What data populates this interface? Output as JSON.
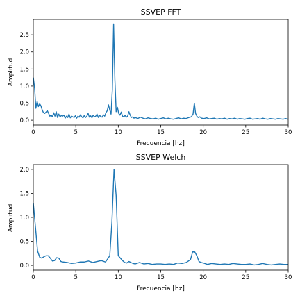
{
  "chart_data": [
    {
      "type": "line",
      "title": "SSVEP FFT",
      "xlabel": "Frecuencia [hz]",
      "ylabel": "Amplitud",
      "xlim": [
        0,
        30
      ],
      "ylim": [
        -0.14,
        2.95
      ],
      "xticks": [
        0,
        5,
        10,
        15,
        20,
        25,
        30
      ],
      "xticklabels": [
        "0",
        "5",
        "10",
        "15",
        "20",
        "25",
        "30"
      ],
      "yticks": [
        0,
        0.5,
        1,
        1.5,
        2,
        2.5
      ],
      "yticklabels": [
        "0.0",
        "0.5",
        "1.0",
        "1.5",
        "2.0",
        "2.5"
      ],
      "series": [
        {
          "name": "FFT",
          "color": "#1f77b4",
          "x": [
            0,
            0.15,
            0.3,
            0.45,
            0.6,
            0.75,
            0.9,
            1.05,
            1.2,
            1.35,
            1.5,
            1.65,
            1.8,
            1.95,
            2.1,
            2.25,
            2.4,
            2.55,
            2.7,
            2.85,
            3.0,
            3.15,
            3.3,
            3.45,
            3.6,
            3.75,
            3.9,
            4.05,
            4.2,
            4.35,
            4.5,
            4.65,
            4.8,
            4.95,
            5.1,
            5.25,
            5.4,
            5.55,
            5.7,
            5.85,
            6.0,
            6.15,
            6.3,
            6.45,
            6.6,
            6.75,
            6.9,
            7.05,
            7.2,
            7.35,
            7.5,
            7.65,
            7.8,
            7.95,
            8.1,
            8.25,
            8.4,
            8.55,
            8.7,
            8.85,
            9.0,
            9.15,
            9.3,
            9.45,
            9.6,
            9.75,
            9.9,
            10.05,
            10.2,
            10.35,
            10.5,
            10.65,
            10.8,
            10.95,
            11.1,
            11.25,
            11.4,
            11.55,
            11.7,
            11.85,
            12.0,
            12.3,
            12.6,
            12.9,
            13.2,
            13.5,
            13.8,
            14.1,
            14.4,
            14.7,
            15.0,
            15.3,
            15.6,
            15.9,
            16.2,
            16.5,
            16.8,
            17.1,
            17.4,
            17.7,
            18.0,
            18.3,
            18.6,
            18.8,
            18.95,
            19.1,
            19.25,
            19.4,
            19.6,
            19.8,
            20.1,
            20.4,
            20.7,
            21.0,
            21.3,
            21.6,
            21.9,
            22.2,
            22.5,
            22.8,
            23.1,
            23.4,
            23.7,
            24.0,
            24.3,
            24.6,
            24.9,
            25.2,
            25.5,
            25.8,
            26.1,
            26.4,
            26.7,
            27.0,
            27.3,
            27.6,
            27.9,
            28.2,
            28.5,
            28.8,
            29.1,
            29.4,
            29.7,
            30.0
          ],
          "y": [
            1.25,
            0.95,
            0.35,
            0.55,
            0.4,
            0.48,
            0.42,
            0.3,
            0.22,
            0.2,
            0.24,
            0.28,
            0.2,
            0.12,
            0.15,
            0.1,
            0.22,
            0.12,
            0.25,
            0.08,
            0.18,
            0.1,
            0.14,
            0.12,
            0.15,
            0.06,
            0.12,
            0.08,
            0.18,
            0.07,
            0.12,
            0.1,
            0.08,
            0.13,
            0.06,
            0.12,
            0.09,
            0.16,
            0.1,
            0.07,
            0.14,
            0.08,
            0.12,
            0.2,
            0.09,
            0.13,
            0.07,
            0.15,
            0.1,
            0.12,
            0.18,
            0.08,
            0.14,
            0.11,
            0.09,
            0.16,
            0.12,
            0.22,
            0.28,
            0.45,
            0.3,
            0.18,
            0.9,
            2.82,
            1.2,
            0.25,
            0.38,
            0.2,
            0.15,
            0.24,
            0.12,
            0.1,
            0.14,
            0.09,
            0.12,
            0.25,
            0.15,
            0.08,
            0.1,
            0.06,
            0.08,
            0.05,
            0.09,
            0.06,
            0.04,
            0.07,
            0.05,
            0.04,
            0.06,
            0.03,
            0.05,
            0.07,
            0.04,
            0.06,
            0.04,
            0.03,
            0.05,
            0.07,
            0.04,
            0.06,
            0.05,
            0.08,
            0.1,
            0.18,
            0.5,
            0.2,
            0.12,
            0.08,
            0.1,
            0.06,
            0.05,
            0.07,
            0.04,
            0.05,
            0.06,
            0.03,
            0.05,
            0.04,
            0.06,
            0.03,
            0.05,
            0.04,
            0.06,
            0.03,
            0.05,
            0.04,
            0.03,
            0.05,
            0.06,
            0.03,
            0.04,
            0.05,
            0.03,
            0.06,
            0.04,
            0.03,
            0.05,
            0.04,
            0.03,
            0.05,
            0.04,
            0.03,
            0.05,
            0.03
          ]
        }
      ]
    },
    {
      "type": "line",
      "title": "SSVEP Welch",
      "xlabel": "Frecuencia [hz]",
      "ylabel": "Amplitud",
      "xlim": [
        0,
        30
      ],
      "ylim": [
        -0.1,
        2.1
      ],
      "xticks": [
        0,
        5,
        10,
        15,
        20,
        25,
        30
      ],
      "xticklabels": [
        "0",
        "5",
        "10",
        "15",
        "20",
        "25",
        "30"
      ],
      "yticks": [
        0,
        0.5,
        1,
        1.5,
        2
      ],
      "yticklabels": [
        "0.0",
        "0.5",
        "1.0",
        "1.5",
        "2.0"
      ],
      "series": [
        {
          "name": "Welch",
          "color": "#1f77b4",
          "x": [
            0,
            0.25,
            0.5,
            0.75,
            1.0,
            1.25,
            1.5,
            1.75,
            2.0,
            2.25,
            2.5,
            2.75,
            3.0,
            3.25,
            3.5,
            4.0,
            4.5,
            5.0,
            5.5,
            6.0,
            6.5,
            7.0,
            7.5,
            8.0,
            8.5,
            9.0,
            9.25,
            9.5,
            9.75,
            10.0,
            10.25,
            10.5,
            10.75,
            11.0,
            11.25,
            11.5,
            11.75,
            12.0,
            12.5,
            13.0,
            13.5,
            14.0,
            14.5,
            15.0,
            15.5,
            16.0,
            16.5,
            17.0,
            17.5,
            18.0,
            18.5,
            18.75,
            19.0,
            19.25,
            19.5,
            19.75,
            20.0,
            20.5,
            21.0,
            21.5,
            22.0,
            22.5,
            23.0,
            23.5,
            24.0,
            24.5,
            25.0,
            25.5,
            26.0,
            26.5,
            27.0,
            27.5,
            28.0,
            28.5,
            29.0,
            29.5,
            30.0
          ],
          "y": [
            1.3,
            0.8,
            0.3,
            0.17,
            0.15,
            0.18,
            0.2,
            0.2,
            0.15,
            0.09,
            0.1,
            0.16,
            0.15,
            0.08,
            0.07,
            0.06,
            0.04,
            0.05,
            0.07,
            0.07,
            0.09,
            0.06,
            0.08,
            0.1,
            0.07,
            0.2,
            0.9,
            2.0,
            1.45,
            0.2,
            0.15,
            0.1,
            0.06,
            0.05,
            0.08,
            0.06,
            0.04,
            0.03,
            0.06,
            0.03,
            0.04,
            0.02,
            0.03,
            0.03,
            0.02,
            0.03,
            0.02,
            0.05,
            0.04,
            0.06,
            0.12,
            0.28,
            0.28,
            0.2,
            0.08,
            0.06,
            0.05,
            0.02,
            0.04,
            0.03,
            0.02,
            0.03,
            0.02,
            0.04,
            0.03,
            0.02,
            0.02,
            0.03,
            0.01,
            0.02,
            0.04,
            0.02,
            0.01,
            0.02,
            0.03,
            0.02,
            0.02
          ]
        }
      ]
    }
  ]
}
